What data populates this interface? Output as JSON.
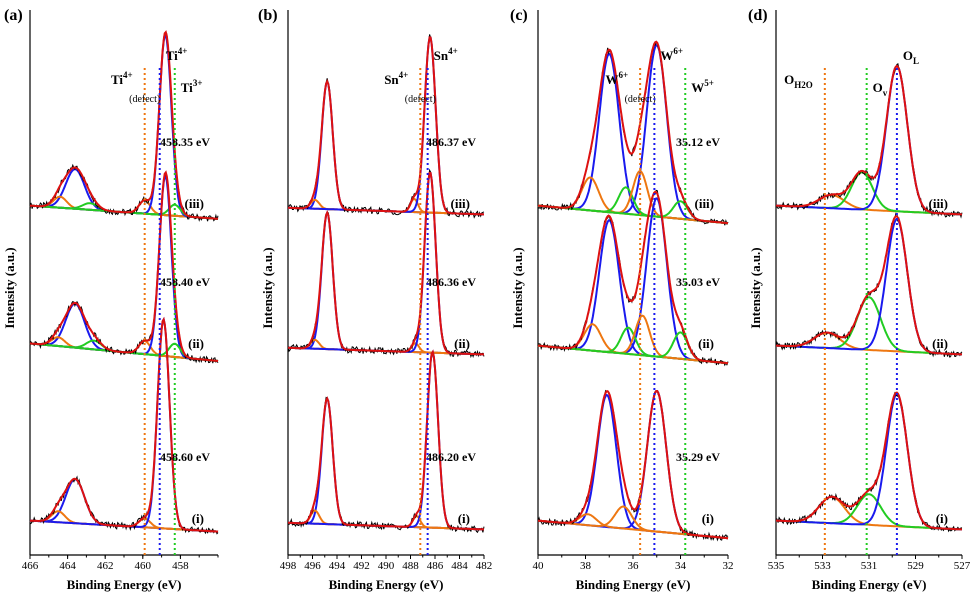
{
  "colors": {
    "raw": "#000000",
    "envelope": "#dd1111",
    "background": "#2a8a2a",
    "blue": "#1a1aee",
    "orange": "#ee7711",
    "green": "#22cc22"
  },
  "chart_data": [
    {
      "type": "line",
      "panel_label": "(a)",
      "xlabel": "Binding Energy (eV)",
      "ylabel": "Intensity (a.u.)",
      "xlim": [
        466,
        456
      ],
      "xticks": [
        "466",
        "464",
        "462",
        "460",
        "458"
      ],
      "refs": [
        {
          "x": 459.9,
          "color": "orange",
          "label": "Ti",
          "sup": "4+",
          "sublabel": "(defect)"
        },
        {
          "x": 459.1,
          "color": "blue",
          "label": "Ti",
          "sup": "4+",
          "sublabel": ""
        },
        {
          "x": 458.3,
          "color": "green",
          "label": "Ti",
          "sup": "3+",
          "sublabel": ""
        }
      ],
      "traces": [
        {
          "name": "(iii)",
          "peak_label": "458.35 eV",
          "baseline": 1.45,
          "bg": [
            0.02,
            -0.04
          ],
          "peaks": [
            {
              "color": "blue",
              "center": 463.6,
              "height": 0.18,
              "width": 0.5
            },
            {
              "color": "orange",
              "center": 464.4,
              "height": 0.05,
              "width": 0.35
            },
            {
              "color": "green",
              "center": 462.8,
              "height": 0.03,
              "width": 0.4
            },
            {
              "color": "orange",
              "center": 459.9,
              "height": 0.06,
              "width": 0.3
            },
            {
              "color": "blue",
              "center": 458.8,
              "height": 0.82,
              "width": 0.32
            },
            {
              "color": "green",
              "center": 458.3,
              "height": 0.05,
              "width": 0.3
            }
          ]
        },
        {
          "name": "(ii)",
          "peak_label": "458.40 eV",
          "baseline": 0.7,
          "bg": [
            0.03,
            -0.05
          ],
          "peaks": [
            {
              "color": "blue",
              "center": 463.6,
              "height": 0.2,
              "width": 0.5
            },
            {
              "color": "orange",
              "center": 464.5,
              "height": 0.04,
              "width": 0.35
            },
            {
              "color": "green",
              "center": 462.6,
              "height": 0.04,
              "width": 0.4
            },
            {
              "color": "orange",
              "center": 459.9,
              "height": 0.06,
              "width": 0.3
            },
            {
              "color": "blue",
              "center": 458.8,
              "height": 0.82,
              "width": 0.32
            },
            {
              "color": "green",
              "center": 458.3,
              "height": 0.06,
              "width": 0.3
            }
          ]
        },
        {
          "name": "(i)",
          "peak_label": "458.60 eV",
          "baseline": 0.0,
          "bg": [
            0.02,
            -0.03
          ],
          "peaks": [
            {
              "color": "blue",
              "center": 463.6,
              "height": 0.2,
              "width": 0.5
            },
            {
              "color": "orange",
              "center": 464.5,
              "height": 0.05,
              "width": 0.35
            },
            {
              "color": "orange",
              "center": 459.9,
              "height": 0.04,
              "width": 0.3
            },
            {
              "color": "blue",
              "center": 458.9,
              "height": 0.95,
              "width": 0.32
            }
          ]
        }
      ]
    },
    {
      "type": "line",
      "panel_label": "(b)",
      "xlabel": "Binding Energy (eV)",
      "ylabel": "Intensity (a.u.)",
      "xlim": [
        498,
        482
      ],
      "xticks": [
        "498",
        "496",
        "494",
        "492",
        "490",
        "488",
        "486",
        "484",
        "482"
      ],
      "refs": [
        {
          "x": 487.2,
          "color": "orange",
          "label": "Sn",
          "sup": "4+",
          "sublabel": "(defect)"
        },
        {
          "x": 486.6,
          "color": "blue",
          "label": "Sn",
          "sup": "4+",
          "sublabel": ""
        }
      ],
      "traces": [
        {
          "name": "(iii)",
          "peak_label": "486.37 eV",
          "baseline": 1.45,
          "bg": [
            0.01,
            -0.02
          ],
          "peaks": [
            {
              "color": "blue",
              "center": 494.8,
              "height": 0.58,
              "width": 0.45
            },
            {
              "color": "orange",
              "center": 495.8,
              "height": 0.04,
              "width": 0.35
            },
            {
              "color": "orange",
              "center": 487.7,
              "height": 0.06,
              "width": 0.3
            },
            {
              "color": "blue",
              "center": 486.4,
              "height": 0.8,
              "width": 0.45
            }
          ]
        },
        {
          "name": "(ii)",
          "peak_label": "486.36 eV",
          "baseline": 0.72,
          "bg": [
            0.01,
            -0.02
          ],
          "peaks": [
            {
              "color": "blue",
              "center": 494.8,
              "height": 0.62,
              "width": 0.45
            },
            {
              "color": "orange",
              "center": 495.8,
              "height": 0.04,
              "width": 0.35
            },
            {
              "color": "orange",
              "center": 487.6,
              "height": 0.04,
              "width": 0.3
            },
            {
              "color": "blue",
              "center": 486.4,
              "height": 0.82,
              "width": 0.45
            }
          ]
        },
        {
          "name": "(i)",
          "peak_label": "486.20 eV",
          "baseline": 0.0,
          "bg": [
            0.01,
            -0.02
          ],
          "peaks": [
            {
              "color": "blue",
              "center": 494.8,
              "height": 0.57,
              "width": 0.45
            },
            {
              "color": "orange",
              "center": 495.8,
              "height": 0.06,
              "width": 0.35
            },
            {
              "color": "orange",
              "center": 487.5,
              "height": 0.05,
              "width": 0.3
            },
            {
              "color": "blue",
              "center": 486.2,
              "height": 0.8,
              "width": 0.45
            }
          ]
        }
      ]
    },
    {
      "type": "line",
      "panel_label": "(c)",
      "xlabel": "Binding Energy (eV)",
      "ylabel": "Intensity (a.u.)",
      "xlim": [
        40,
        32
      ],
      "xticks": [
        "40",
        "38",
        "36",
        "34",
        "32"
      ],
      "refs": [
        {
          "x": 35.7,
          "color": "orange",
          "label": "W",
          "sup": "6+",
          "sublabel": "(defect)"
        },
        {
          "x": 35.1,
          "color": "blue",
          "label": "W",
          "sup": "6+",
          "sublabel": ""
        },
        {
          "x": 33.8,
          "color": "green",
          "label": "W",
          "sup": "5+",
          "sublabel": ""
        }
      ],
      "traces": [
        {
          "name": "(iii)",
          "peak_label": "35.12 eV",
          "baseline": 1.4,
          "bg": [
            0.02,
            -0.06
          ],
          "peaks": [
            {
              "color": "blue",
              "center": 37.0,
              "height": 0.72,
              "width": 0.42
            },
            {
              "color": "blue",
              "center": 35.0,
              "height": 0.78,
              "width": 0.42
            },
            {
              "color": "orange",
              "center": 37.8,
              "height": 0.15,
              "width": 0.35
            },
            {
              "color": "green",
              "center": 36.3,
              "height": 0.12,
              "width": 0.3
            },
            {
              "color": "orange",
              "center": 35.7,
              "height": 0.2,
              "width": 0.3
            },
            {
              "color": "green",
              "center": 34.0,
              "height": 0.08,
              "width": 0.3
            }
          ]
        },
        {
          "name": "(ii)",
          "peak_label": "35.03 eV",
          "baseline": 0.72,
          "bg": [
            0.02,
            -0.06
          ],
          "peaks": [
            {
              "color": "blue",
              "center": 37.0,
              "height": 0.6,
              "width": 0.42
            },
            {
              "color": "blue",
              "center": 35.0,
              "height": 0.72,
              "width": 0.42
            },
            {
              "color": "orange",
              "center": 37.7,
              "height": 0.12,
              "width": 0.35
            },
            {
              "color": "green",
              "center": 36.2,
              "height": 0.12,
              "width": 0.3
            },
            {
              "color": "orange",
              "center": 35.6,
              "height": 0.18,
              "width": 0.3
            },
            {
              "color": "green",
              "center": 34.0,
              "height": 0.12,
              "width": 0.3
            }
          ]
        },
        {
          "name": "(i)",
          "peak_label": "35.29 eV",
          "baseline": 0.0,
          "bg": [
            0.02,
            -0.06
          ],
          "peaks": [
            {
              "color": "blue",
              "center": 37.1,
              "height": 0.6,
              "width": 0.4
            },
            {
              "color": "blue",
              "center": 35.0,
              "height": 0.64,
              "width": 0.4
            },
            {
              "color": "orange",
              "center": 37.9,
              "height": 0.05,
              "width": 0.35
            },
            {
              "color": "orange",
              "center": 36.4,
              "height": 0.1,
              "width": 0.35
            }
          ]
        }
      ]
    },
    {
      "type": "line",
      "panel_label": "(d)",
      "xlabel": "Binding Energy (eV)",
      "ylabel": "Intensity (a.u.)",
      "xlim": [
        535,
        527
      ],
      "xticks": [
        "535",
        "533",
        "531",
        "529",
        "527"
      ],
      "refs": [
        {
          "x": 532.9,
          "color": "orange",
          "label": "O",
          "sub": "H2O",
          "sublabel": ""
        },
        {
          "x": 531.1,
          "color": "green",
          "label": "O",
          "sub": "v",
          "sublabel": ""
        },
        {
          "x": 529.8,
          "color": "blue",
          "label": "O",
          "sub": "L",
          "sublabel": ""
        }
      ],
      "traces": [
        {
          "name": "(iii)",
          "peak_label": "",
          "baseline": 1.4,
          "bg": [
            0.02,
            -0.02
          ],
          "peaks": [
            {
              "color": "orange",
              "center": 532.6,
              "height": 0.06,
              "width": 0.55
            },
            {
              "color": "green",
              "center": 531.3,
              "height": 0.17,
              "width": 0.45
            },
            {
              "color": "blue",
              "center": 529.8,
              "height": 0.66,
              "width": 0.45
            }
          ]
        },
        {
          "name": "(ii)",
          "peak_label": "",
          "baseline": 0.72,
          "bg": [
            0.02,
            -0.02
          ],
          "peaks": [
            {
              "color": "orange",
              "center": 532.8,
              "height": 0.07,
              "width": 0.55
            },
            {
              "color": "green",
              "center": 531.0,
              "height": 0.24,
              "width": 0.5
            },
            {
              "color": "blue",
              "center": 529.8,
              "height": 0.6,
              "width": 0.45
            }
          ]
        },
        {
          "name": "(i)",
          "peak_label": "",
          "baseline": 0.0,
          "bg": [
            0.02,
            -0.02
          ],
          "peaks": [
            {
              "color": "orange",
              "center": 532.6,
              "height": 0.12,
              "width": 0.55
            },
            {
              "color": "green",
              "center": 531.0,
              "height": 0.14,
              "width": 0.5
            },
            {
              "color": "blue",
              "center": 529.8,
              "height": 0.6,
              "width": 0.45
            }
          ]
        }
      ]
    }
  ]
}
